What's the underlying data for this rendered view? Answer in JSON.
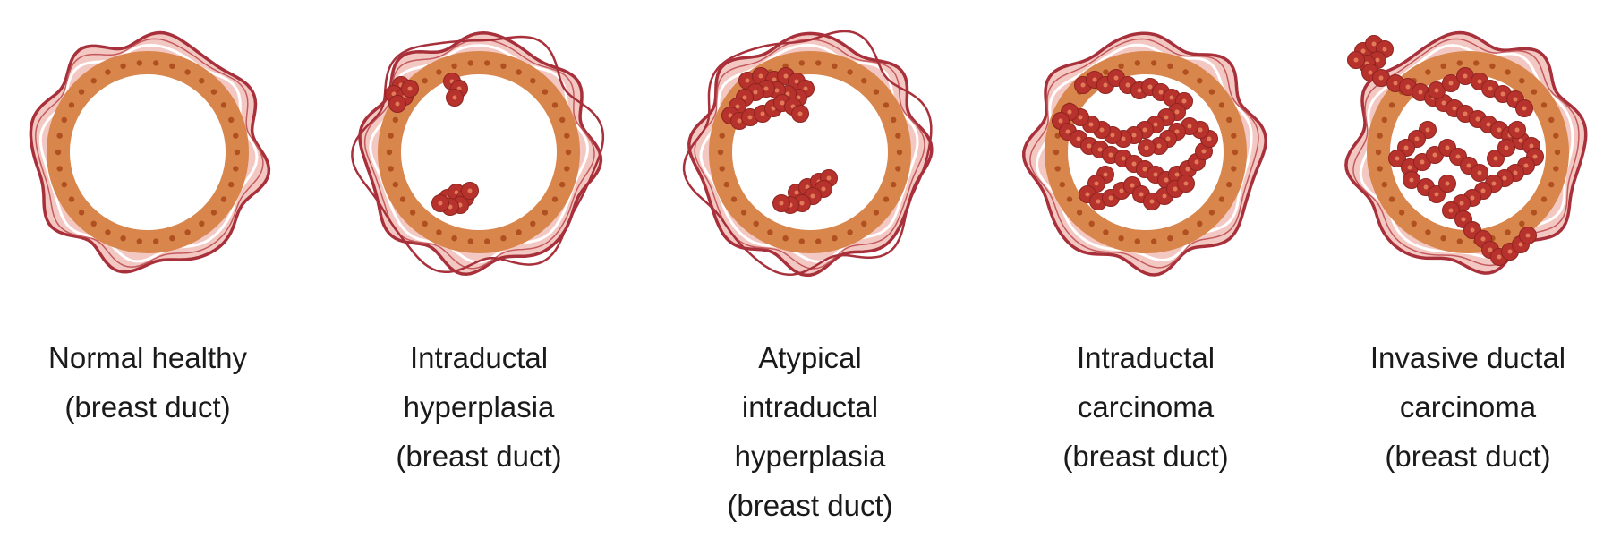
{
  "diagram": {
    "colors": {
      "background": "#ffffff",
      "outer_wall_line": "#a8303a",
      "stroma_fill": "#f3c8c2",
      "stroma_line": "#c45a5e",
      "epithelium": "#d9864d",
      "epithelium_nucleus": "#b04f20",
      "abnormal_cell": "#b7322c",
      "abnormal_cell_nucleus": "#e07a58",
      "text": "#1a1a1a"
    },
    "stages": [
      {
        "key": "normal",
        "caption_lines": [
          "Normal healthy",
          "(breast duct)"
        ],
        "proliferation": "none"
      },
      {
        "key": "hyperplasia",
        "caption_lines": [
          "Intraductal",
          "hyperplasia",
          "(breast duct)"
        ],
        "proliferation": "small clusters along the inner wall"
      },
      {
        "key": "atypical",
        "caption_lines": [
          "Atypical",
          "intraductal",
          "hyperplasia",
          "(breast duct)"
        ],
        "proliferation": "irregular bridging clusters"
      },
      {
        "key": "carcinoma",
        "caption_lines": [
          "Intraductal",
          "carcinoma",
          "(breast duct)"
        ],
        "proliferation": "lumen largely filled"
      },
      {
        "key": "invasive",
        "caption_lines": [
          "Invasive ductal",
          "carcinoma",
          "(breast duct)"
        ],
        "proliferation": "cells breaking through the duct wall"
      }
    ]
  }
}
